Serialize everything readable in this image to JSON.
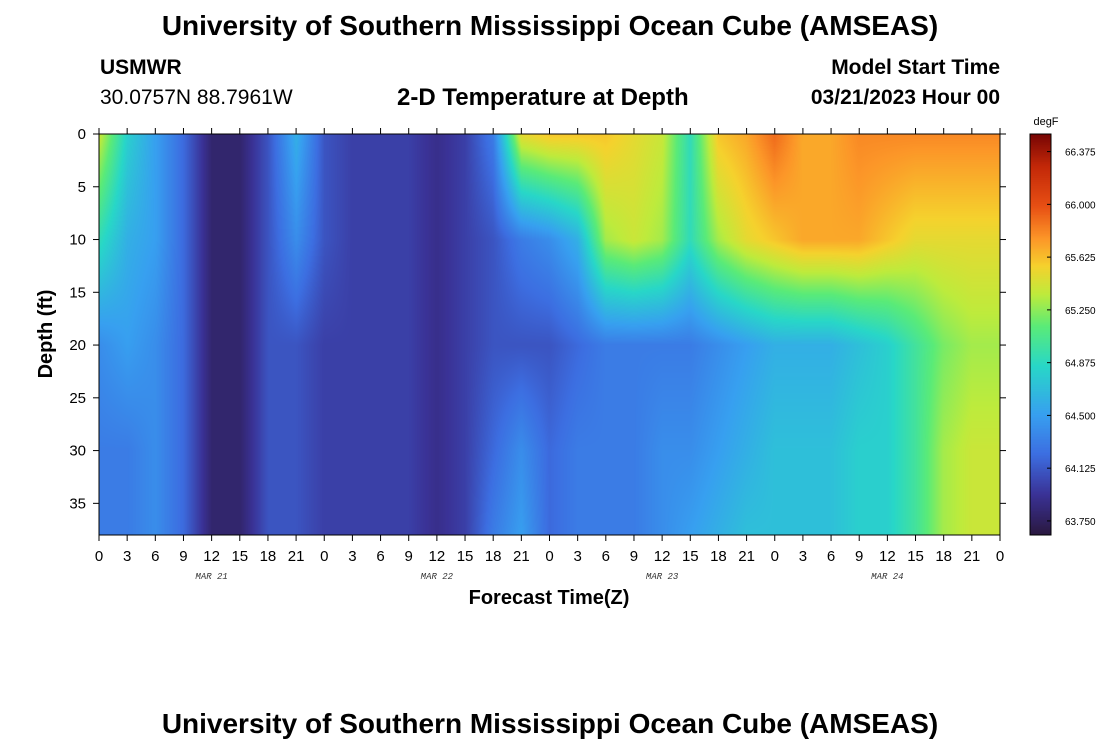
{
  "header": {
    "title": "University of Southern Mississippi Ocean Cube (AMSEAS)",
    "station": "USMWR",
    "coords": "30.0757N  88.7961W",
    "subtitle": "2-D Temperature at Depth",
    "model_label": "Model Start Time",
    "model_time": "03/21/2023 Hour 00"
  },
  "footer": {
    "title": "University of Southern Mississippi Ocean Cube (AMSEAS)"
  },
  "chart_data": {
    "type": "heatmap",
    "title": "2-D Temperature at Depth",
    "xlabel": "Forecast Time(Z)",
    "ylabel": "Depth (ft)",
    "x_range_hours": [
      0,
      96
    ],
    "x_tick_step_hours": 3,
    "x_tick_labels": [
      "0",
      "3",
      "6",
      "9",
      "12",
      "15",
      "18",
      "21",
      "0",
      "3",
      "6",
      "9",
      "12",
      "15",
      "18",
      "21",
      "0",
      "3",
      "6",
      "9",
      "12",
      "15",
      "18",
      "21",
      "0",
      "3",
      "6",
      "9",
      "12",
      "15",
      "18",
      "21",
      "0"
    ],
    "date_labels": [
      {
        "text": "MAR 21",
        "hour": 12
      },
      {
        "text": "MAR 22",
        "hour": 36
      },
      {
        "text": "MAR 23",
        "hour": 60
      },
      {
        "text": "MAR 24",
        "hour": 84
      }
    ],
    "y_range": [
      0,
      38
    ],
    "y_ticks": [
      0,
      5,
      10,
      15,
      20,
      25,
      30,
      35
    ],
    "y_tick_labels": [
      "0",
      "5",
      "10",
      "15",
      "20",
      "25",
      "30",
      "35"
    ],
    "colorbar": {
      "unit": "degF",
      "range": [
        63.65,
        66.5
      ],
      "tick_values": [
        63.75,
        64.125,
        64.5,
        64.875,
        65.25,
        65.625,
        66.0,
        66.375
      ],
      "tick_labels": [
        "63.750",
        "64.125",
        "64.500",
        "64.875",
        "65.250",
        "65.625",
        "66.000",
        "66.375"
      ]
    },
    "depths_ft": [
      0,
      10,
      20,
      30,
      38
    ],
    "hours": [
      0,
      3,
      6,
      9,
      12,
      15,
      18,
      21,
      24,
      27,
      30,
      33,
      36,
      39,
      42,
      45,
      48,
      51,
      54,
      57,
      60,
      63,
      66,
      69,
      72,
      75,
      78,
      81,
      84,
      87,
      90,
      93,
      96
    ],
    "temperature_degF": [
      [
        65.4,
        64.8,
        64.5,
        64.2,
        63.8,
        63.8,
        64.1,
        64.6,
        64.1,
        64.0,
        64.0,
        64.0,
        63.9,
        64.0,
        64.3,
        65.5,
        65.6,
        65.6,
        65.6,
        65.5,
        65.4,
        64.9,
        65.6,
        65.7,
        65.9,
        65.7,
        65.7,
        65.8,
        65.8,
        65.8,
        65.8,
        65.8,
        65.8
      ],
      [
        64.9,
        64.6,
        64.5,
        64.2,
        63.8,
        63.8,
        64.1,
        64.4,
        64.1,
        64.0,
        64.0,
        64.0,
        63.9,
        64.0,
        64.1,
        64.3,
        64.4,
        64.6,
        65.3,
        65.4,
        65.3,
        64.9,
        65.3,
        65.5,
        65.6,
        65.7,
        65.7,
        65.7,
        65.6,
        65.5,
        65.5,
        65.5,
        65.5
      ],
      [
        64.4,
        64.5,
        64.4,
        64.2,
        63.8,
        63.8,
        64.1,
        64.1,
        64.0,
        64.0,
        64.0,
        64.0,
        63.9,
        64.0,
        64.1,
        64.1,
        64.1,
        64.2,
        64.3,
        64.3,
        64.3,
        64.3,
        64.4,
        64.5,
        64.6,
        64.6,
        64.6,
        64.7,
        64.8,
        65.0,
        65.2,
        65.3,
        65.3
      ],
      [
        64.3,
        64.3,
        64.4,
        64.2,
        63.8,
        63.8,
        64.1,
        64.1,
        64.0,
        64.0,
        64.0,
        64.0,
        63.9,
        64.0,
        64.2,
        64.4,
        64.2,
        64.3,
        64.3,
        64.3,
        64.4,
        64.4,
        64.5,
        64.6,
        64.7,
        64.7,
        64.7,
        64.8,
        64.8,
        65.0,
        65.3,
        65.4,
        65.4
      ],
      [
        64.3,
        64.3,
        64.4,
        64.2,
        63.8,
        63.8,
        64.1,
        64.1,
        64.0,
        64.0,
        64.0,
        64.0,
        63.9,
        64.0,
        64.3,
        64.5,
        64.2,
        64.3,
        64.3,
        64.3,
        64.4,
        64.5,
        64.6,
        64.7,
        64.7,
        64.7,
        64.7,
        64.8,
        64.8,
        65.0,
        65.3,
        65.4,
        65.4
      ]
    ]
  }
}
